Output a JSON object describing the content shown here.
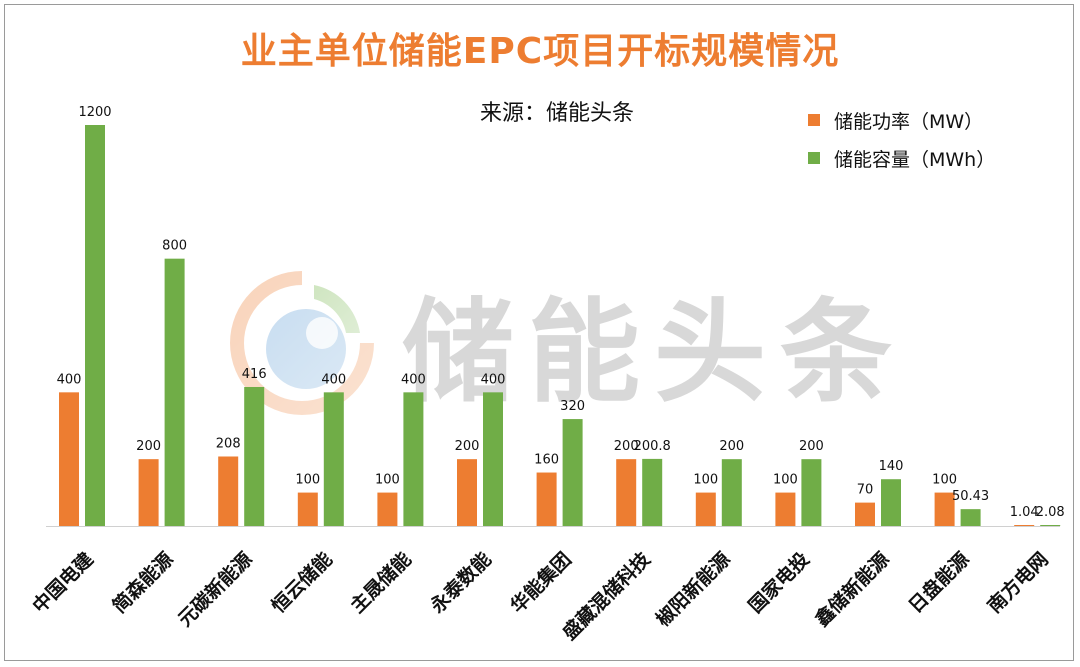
{
  "title": "业主单位储能EPC项目开标规模情况",
  "source_note": "来源：储能头条",
  "watermark_text": "储能头条",
  "legend": [
    {
      "label": "储能功率（MW）",
      "color": "#ED7D31"
    },
    {
      "label": "储能容量（MWh）",
      "color": "#70AD47"
    }
  ],
  "chart_data": {
    "type": "bar",
    "title": "业主单位储能EPC项目开标规模情况",
    "xlabel": "",
    "ylabel": "",
    "ylim": [
      0,
      1200
    ],
    "grid": false,
    "legend_position": "top-right",
    "categories": [
      "中国电建",
      "简森能源",
      "元碳新能源",
      "恒云储能",
      "主晟储能",
      "永泰数能",
      "华能集团",
      "盛藏混储科技",
      "椒阳新能源",
      "国家电投",
      "鑫储新能源",
      "日盘能源",
      "南方电网"
    ],
    "series": [
      {
        "name": "储能功率（MW）",
        "color": "#ED7D31",
        "values": [
          400,
          200,
          208,
          100,
          100,
          200,
          160,
          200,
          100,
          100,
          70,
          100,
          1.04
        ]
      },
      {
        "name": "储能容量（MWh）",
        "color": "#70AD47",
        "values": [
          1200,
          800,
          416,
          400,
          400,
          400,
          320,
          200.8,
          200,
          200,
          140,
          50.43,
          2.08
        ]
      }
    ],
    "data_labels": {
      "series_0": [
        "400",
        "200",
        "208",
        "100",
        "100",
        "200",
        "160",
        "200",
        "100",
        "100",
        "70",
        "100",
        "1.04"
      ],
      "series_1": [
        "1200",
        "800",
        "416",
        "400",
        "400",
        "400",
        "320",
        "200.8",
        "200",
        "200",
        "140",
        "50.43",
        "2.08"
      ]
    }
  }
}
